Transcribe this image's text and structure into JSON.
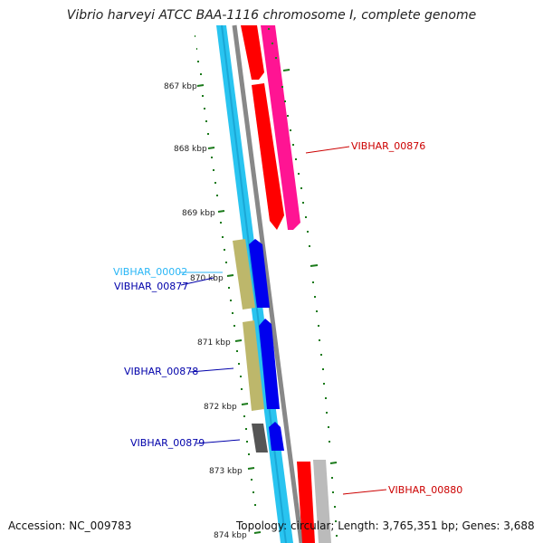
{
  "title": "Vibrio harveyi ATCC BAA-1116 chromosome I, complete genome",
  "footer": {
    "accession": "Accession: NC_009783",
    "summary": "Topology: circular; Length: 3,765,351 bp; Genes: 3,688"
  },
  "ruler": {
    "tick_labels": [
      "867 kbp",
      "868 kbp",
      "869 kbp",
      "870 kbp",
      "871 kbp",
      "872 kbp",
      "873 kbp",
      "874 kbp"
    ],
    "tick_color": "#1a7a1a"
  },
  "colors": {
    "backbone": "#888888",
    "cds_strand_fwd": "#29c4f0",
    "red_gene": "#ff0000",
    "pink_gene": "#ff1493",
    "blue_gene": "#0000ee",
    "olive_gene": "#bdb76b",
    "dark_gray_gene": "#555555",
    "light_gray_gene": "#bbbbbb"
  },
  "gene_labels": [
    {
      "id": "VIBHAR_00876",
      "color": "#cc0000"
    },
    {
      "id": "VIBHAR_00002",
      "color": "#29b6f6"
    },
    {
      "id": "VIBHAR_00877",
      "color": "#0000aa"
    },
    {
      "id": "VIBHAR_00878",
      "color": "#0000aa"
    },
    {
      "id": "VIBHAR_00879",
      "color": "#0000aa"
    },
    {
      "id": "VIBHAR_00880",
      "color": "#cc0000"
    }
  ]
}
